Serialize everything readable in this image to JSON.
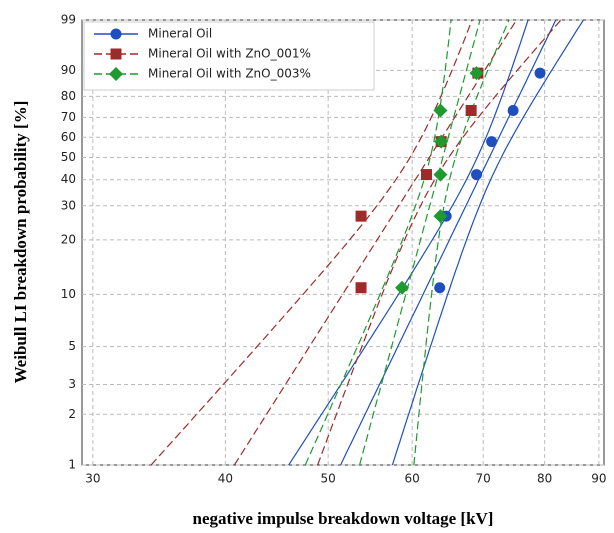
{
  "chart_data": {
    "type": "weibull",
    "xlabel": "negative impulse breakdown voltage [kV]",
    "ylabel": "Weibull LI breakdown probability [%]",
    "xscale": "log",
    "yscale": "weibull",
    "xlim": [
      29.3,
      91
    ],
    "xticks": [
      30,
      40,
      50,
      60,
      70,
      80,
      90
    ],
    "ylim": [
      1,
      99
    ],
    "yticks": [
      1,
      2,
      3,
      5,
      10,
      20,
      30,
      40,
      50,
      60,
      70,
      80,
      90,
      99
    ],
    "grid": true,
    "legend": "top-left",
    "series": [
      {
        "name": "Mineral Oil",
        "color": "#1f4fbf",
        "marker": "circle",
        "dash": "solid",
        "x": [
          63.7,
          64.6,
          69.0,
          71.3,
          74.7,
          79.2
        ],
        "values": [
          10.9,
          26.6,
          42.2,
          57.8,
          73.4,
          89.1
        ]
      },
      {
        "name": "Mineral Oil with ZnO_001%",
        "color": "#9e2a2a",
        "marker": "square",
        "dash": "dashed",
        "x": [
          53.7,
          53.7,
          61.9,
          63.9,
          68.2,
          69.2
        ],
        "values": [
          10.9,
          26.6,
          42.2,
          57.8,
          73.4,
          89.1
        ]
      },
      {
        "name": "Mineral Oil with ZnO_003%",
        "color": "#1e9a2e",
        "marker": "diamond",
        "dash": "dashed",
        "x": [
          58.7,
          63.8,
          63.8,
          63.9,
          63.8,
          69.0
        ],
        "values": [
          10.9,
          26.6,
          42.2,
          57.8,
          73.4,
          89.1
        ]
      }
    ]
  }
}
